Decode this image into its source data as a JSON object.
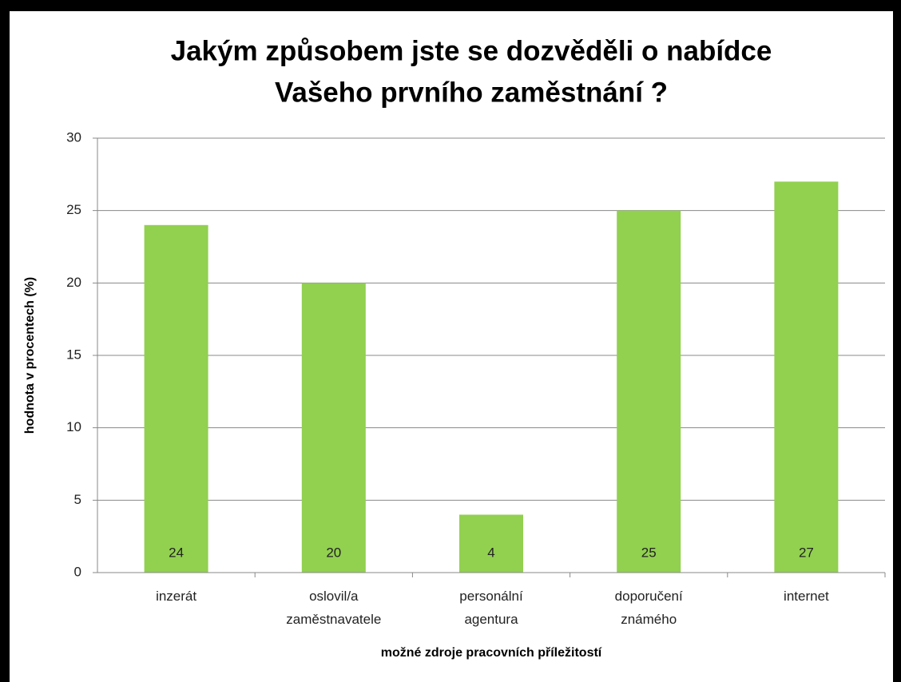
{
  "chart_data": {
    "type": "bar",
    "title": [
      "Jakým způsobem jste se dozvěděli o nabídce",
      "Vašeho prvního zaměstnání ?"
    ],
    "xlabel": "možné zdroje pracovních příležitostí",
    "ylabel": "hodnota v procentech (%)",
    "categories": [
      "inzerát",
      "oslovil/a zaměstnavatele",
      "personální agentura",
      "doporučení známého",
      "internet"
    ],
    "values": [
      24,
      20,
      4,
      25,
      27
    ],
    "color": "#92d050",
    "ylim": [
      0,
      30
    ],
    "yticks": [
      0,
      5,
      10,
      15,
      20,
      25,
      30
    ],
    "grid": true
  }
}
